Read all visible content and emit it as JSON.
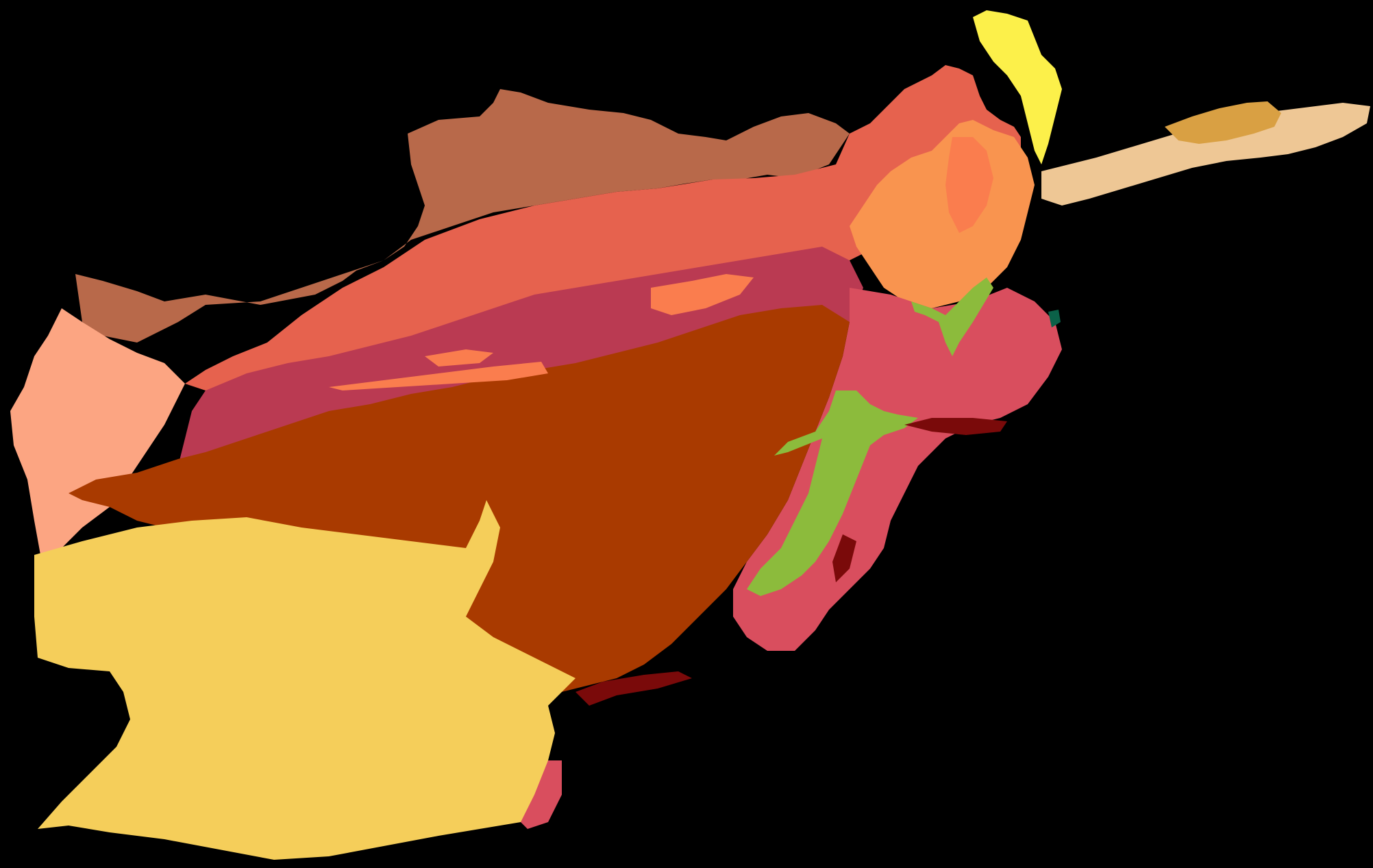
{
  "map": {
    "background": "#000000",
    "zones": [
      {
        "id": "cold-desert-north",
        "color": "#B8694A"
      },
      {
        "id": "temperate-belt",
        "color": "#E6624E"
      },
      {
        "id": "west-steppe",
        "color": "#FCA582"
      },
      {
        "id": "northeast-highland",
        "color": "#F9944F"
      },
      {
        "id": "northeast-valley",
        "color": "#FA7D4E"
      },
      {
        "id": "tundra-peaks",
        "color": "#FCF04A"
      },
      {
        "id": "wakhan-highland",
        "color": "#D9A043"
      },
      {
        "id": "wakhan-alpine",
        "color": "#EEC795"
      },
      {
        "id": "central-highland",
        "color": "#BA3A52"
      },
      {
        "id": "east-subtropical",
        "color": "#D94E5E"
      },
      {
        "id": "central-semi-arid",
        "color": "#A93A00"
      },
      {
        "id": "south-hot-desert",
        "color": "#F5CE5A"
      },
      {
        "id": "east-humid",
        "color": "#8CBB3C"
      },
      {
        "id": "south-border-hot",
        "color": "#7A0A0A"
      },
      {
        "id": "east-forest",
        "color": "#0B6148"
      },
      {
        "id": "central-warm-patch",
        "color": "#FA7D4E"
      }
    ]
  }
}
